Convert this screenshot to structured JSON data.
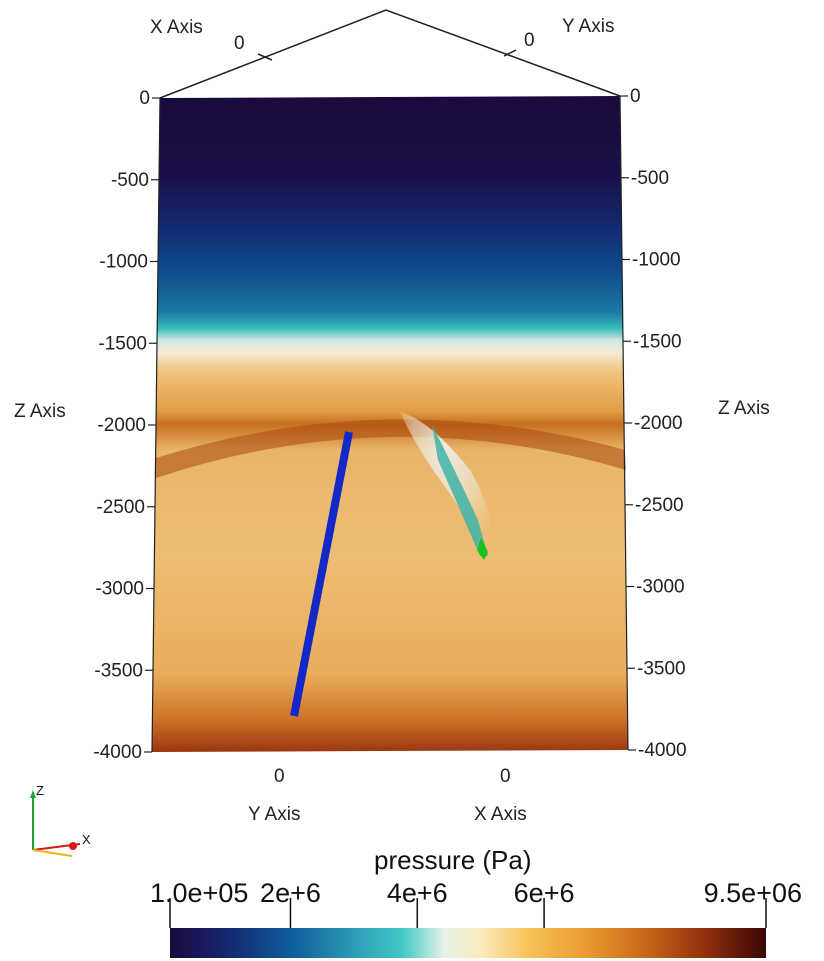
{
  "scene": {
    "top_box": {
      "x_axis_label": "X Axis",
      "y_axis_label": "Y Axis",
      "x_zero": "0",
      "y_zero": "0"
    },
    "z_axis": {
      "label_left": "Z Axis",
      "label_right": "Z Axis",
      "ticks_left": [
        "0",
        "-500",
        "-1000",
        "-1500",
        "-2000",
        "-2500",
        "-3000",
        "-3500",
        "-4000"
      ],
      "ticks_right": [
        "0",
        "-500",
        "-1000",
        "-1500",
        "-2000",
        "-2500",
        "-3000",
        "-3500",
        "-4000"
      ]
    },
    "bottom_axes": {
      "y_axis_label": "Y Axis",
      "x_axis_label": "X Axis",
      "y_zero": "0",
      "x_zero": "0"
    },
    "orientation": {
      "z": "Z",
      "x": "X"
    }
  },
  "colorbar": {
    "title": "pressure (Pa)",
    "tick_labels": [
      "1.0e+05",
      "2e+6",
      "4e+6",
      "6e+6",
      "9.5e+06"
    ],
    "min": 100000,
    "max": 9500000,
    "ticks": [
      100000,
      2000000,
      4000000,
      6000000,
      9500000
    ],
    "colors": [
      "#1a0a3d",
      "#16246e",
      "#0e5a9a",
      "#2fa3b8",
      "#42c8c6",
      "#e6f2e8",
      "#f9ecc0",
      "#f8c25a",
      "#e99a2f",
      "#c86518",
      "#8f2e0c",
      "#3a0707"
    ]
  },
  "colors": {
    "well_blue": "#1428c8",
    "well_green": "#14c41a"
  }
}
